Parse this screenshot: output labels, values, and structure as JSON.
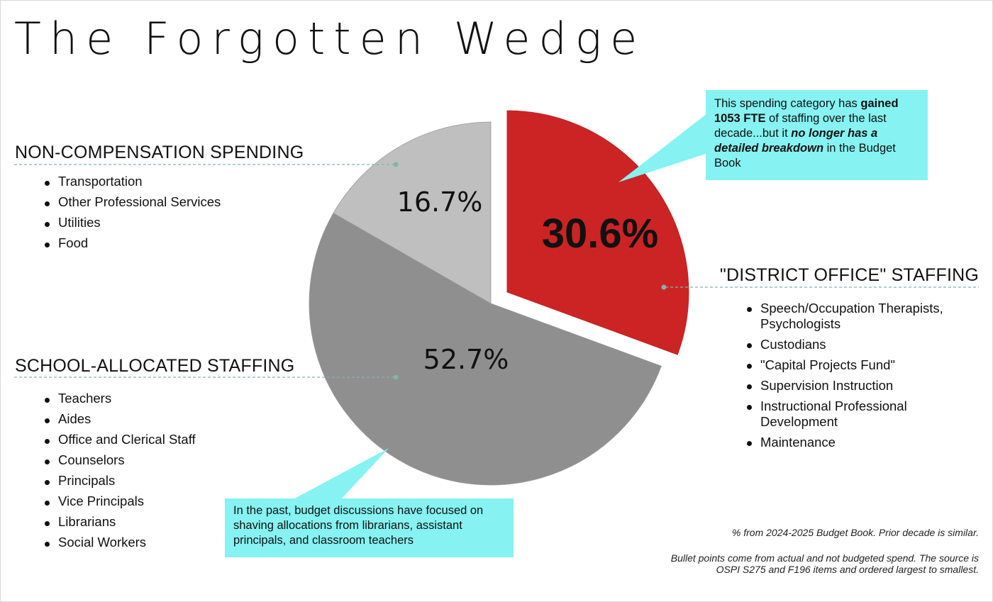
{
  "title": "The Forgotten  Wedge",
  "chart_data": {
    "type": "pie",
    "title": "The Forgotten  Wedge",
    "slices": [
      {
        "label": "\"DISTRICT OFFICE\" STAFFING",
        "value": 30.6,
        "display": "30.6%",
        "color": "#cc2424",
        "exploded": true
      },
      {
        "label": "SCHOOL-ALLOCATED STAFFING",
        "value": 52.7,
        "display": "52.7%",
        "color": "#8f8f8f",
        "exploded": false
      },
      {
        "label": "NON-COMPENSATION SPENDING",
        "value": 16.7,
        "display": "16.7%",
        "color": "#bfbfbf",
        "exploded": false
      }
    ]
  },
  "categories": {
    "non_compensation": {
      "title": "NON-COMPENSATION SPENDING",
      "items": [
        "Transportation",
        "Other Professional Services",
        "Utilities",
        "Food"
      ]
    },
    "school_allocated": {
      "title": "SCHOOL-ALLOCATED STAFFING",
      "items": [
        "Teachers",
        "Aides",
        "Office and Clerical Staff",
        "Counselors",
        "Principals",
        "Vice Principals",
        "Librarians",
        "Social Workers"
      ]
    },
    "district_office": {
      "title": "\"DISTRICT OFFICE\" STAFFING",
      "items": [
        "Speech/Occupation Therapists, Psychologists",
        "Custodians",
        "\"Capital Projects Fund\"",
        "Supervision Instruction",
        "Instructional Professional Development",
        "Maintenance"
      ]
    }
  },
  "callouts": {
    "district": {
      "t1": "This spending category has ",
      "t2": "gained 1053 FTE",
      "t3": " of staffing over the last decade...but it ",
      "t4": "no longer has a detailed breakdown",
      "t5": " in the Budget Book"
    },
    "school": {
      "text": "In the past, budget discussions have focused on shaving allocations from librarians, assistant principals, and classroom teachers"
    }
  },
  "notes": {
    "source": "% from 2024-2025 Budget Book. Prior decade is similar.",
    "bullets_line1": "Bullet points come from actual and not budgeted spend. The source is",
    "bullets_line2": "OSPI S275 and F196 items and ordered largest to smallest."
  },
  "colors": {
    "district_office": "#cc2424",
    "school_allocated": "#8f8f8f",
    "non_compensation": "#bfbfbf",
    "callout": "#86f2f2",
    "leader_line": "#7fb5ad"
  }
}
